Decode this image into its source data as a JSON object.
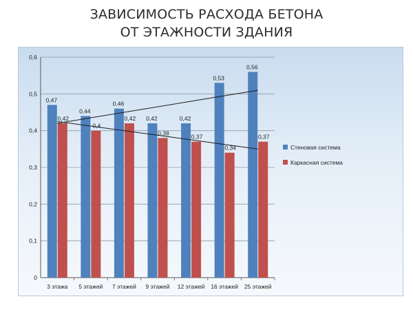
{
  "slide": {
    "title_line1": "ЗАВИСИМОСТЬ РАСХОДА БЕТОНА",
    "title_line2": "ОТ ЭТАЖНОСТИ ЗДАНИЯ"
  },
  "chart_data": {
    "type": "bar",
    "title": "ЗАВИСИМОСТЬ РАСХОДА БЕТОНА ОТ ЭТАЖНОСТИ ЗДАНИЯ",
    "categories": [
      "3 этажа",
      "5 этажей",
      "7 этажей",
      "9 этажей",
      "12 этажей",
      "16 этажей",
      "25 этажей"
    ],
    "series": [
      {
        "name": "Стеновая система",
        "values": [
          0.47,
          0.44,
          0.46,
          0.42,
          0.42,
          0.53,
          0.56
        ],
        "labels": [
          "0,47",
          "0,44",
          "0,46",
          "0,42",
          "0,42",
          "0,53",
          "0,56"
        ],
        "color": "#4f81bd"
      },
      {
        "name": "Каркасная система",
        "values": [
          0.42,
          0.4,
          0.42,
          0.38,
          0.37,
          0.34,
          0.37
        ],
        "labels": [
          "0,42",
          "0,4",
          "0,42",
          "0,38",
          "0,37",
          "0,34",
          "0,37"
        ],
        "color": "#c0504d"
      }
    ],
    "yticks": [
      0,
      0.1,
      0.2,
      0.3,
      0.4,
      0.5,
      0.6
    ],
    "ytick_labels": [
      "0",
      "0,1",
      "0,2",
      "0,3",
      "0,4",
      "0,5",
      "0,6"
    ],
    "ylim": [
      0,
      0.6
    ],
    "grid": true,
    "legend": "right",
    "trendlines": [
      {
        "series": "Стеновая система",
        "from": [
          0,
          0.42
        ],
        "to": [
          6,
          0.51
        ]
      },
      {
        "series": "Каркасная система",
        "from": [
          0,
          0.425
        ],
        "to": [
          6,
          0.35
        ]
      }
    ]
  }
}
